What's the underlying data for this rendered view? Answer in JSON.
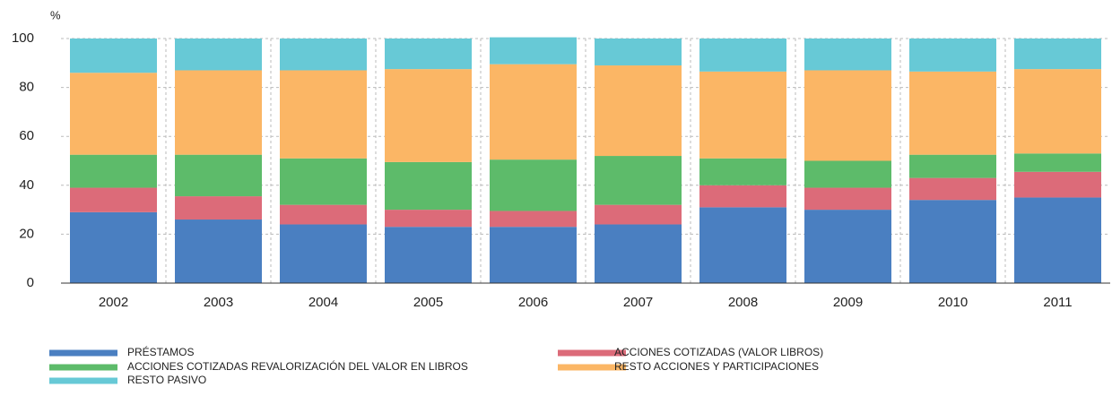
{
  "chart_data": {
    "type": "stacked_bar",
    "y_label": "%",
    "categories": [
      "2002",
      "2003",
      "2004",
      "2005",
      "2006",
      "2007",
      "2008",
      "2009",
      "2010",
      "2011"
    ],
    "series": [
      {
        "name": "PRÉSTAMOS",
        "color": "#4a7fc1",
        "values": [
          29,
          26,
          24,
          23,
          23,
          24,
          31,
          30,
          34,
          35
        ]
      },
      {
        "name": "ACCIONES COTIZADAS (VALOR LIBROS)",
        "color": "#dc6b79",
        "values": [
          10,
          9.5,
          8,
          7,
          6.5,
          8,
          9,
          9,
          9,
          10.5
        ]
      },
      {
        "name": "ACCIONES COTIZADAS REVALORIZACIÓN DEL VALOR EN LIBROS",
        "color": "#5dbb6a",
        "values": [
          13.5,
          17,
          19,
          19.5,
          21,
          20,
          11,
          11,
          9.5,
          7.5
        ]
      },
      {
        "name": "RESTO ACCIONES Y PARTICIPACIONES",
        "color": "#fbb665",
        "values": [
          33.5,
          34.5,
          36,
          38,
          39,
          37,
          35.5,
          37,
          34,
          34.5
        ]
      },
      {
        "name": "RESTO PASIVO",
        "color": "#67c9d6",
        "values": [
          14,
          13,
          13,
          12.5,
          11,
          11,
          13.5,
          13,
          13.5,
          12.5
        ]
      }
    ],
    "ylim": [
      0,
      100
    ],
    "yticks": [
      0,
      20,
      40,
      60,
      80,
      100
    ],
    "grid": true
  }
}
